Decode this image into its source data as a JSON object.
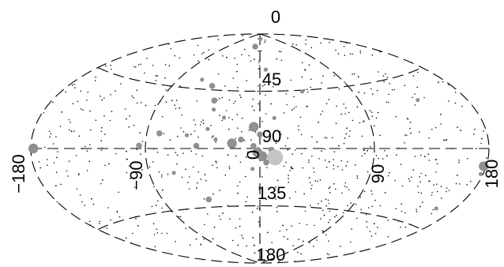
{
  "chart_data": {
    "type": "scatter",
    "projection": "aitoff",
    "title": "",
    "xlabel": "",
    "ylabel": "",
    "lon_range": [
      -180,
      180
    ],
    "colatitude_range": [
      0,
      180
    ],
    "grid": true,
    "lon_tick_labels": [
      {
        "lon": -180,
        "text": "−180"
      },
      {
        "lon": -90,
        "text": "−90"
      },
      {
        "lon": 0,
        "text": "0"
      },
      {
        "lon": 90,
        "text": "90"
      },
      {
        "lon": 180,
        "text": "180"
      }
    ],
    "lat_tick_labels": [
      {
        "colat": 0,
        "text": "0"
      },
      {
        "colat": 45,
        "text": "45"
      },
      {
        "colat": 90,
        "text": "90"
      },
      {
        "colat": 135,
        "text": "135"
      },
      {
        "colat": 180,
        "text": "180"
      }
    ],
    "colors": {
      "bright": "#909090",
      "faint": "#111111",
      "bright_light": "#c4c4c4"
    },
    "bright_sources": [
      {
        "lon": 5,
        "colat": 4,
        "mag": 1
      },
      {
        "lon": -15,
        "colat": 10,
        "mag": 2
      },
      {
        "lon": -65,
        "colat": 38,
        "mag": 1
      },
      {
        "lon": -50,
        "colat": 42,
        "mag": 2
      },
      {
        "lon": -42,
        "colat": 53,
        "mag": 2
      },
      {
        "lon": -40,
        "colat": 60,
        "mag": 1
      },
      {
        "lon": -30,
        "colat": 66,
        "mag": 1
      },
      {
        "lon": -5,
        "colat": 73,
        "mag": 3
      },
      {
        "lon": 0,
        "colat": 79,
        "mag": 2
      },
      {
        "lon": -15,
        "colat": 83,
        "mag": 2
      },
      {
        "lon": -42,
        "colat": 75,
        "mag": 1
      },
      {
        "lon": -80,
        "colat": 79,
        "mag": 2
      },
      {
        "lon": -58,
        "colat": 80,
        "mag": 1
      },
      {
        "lon": -35,
        "colat": 83,
        "mag": 1
      },
      {
        "lon": -22,
        "colat": 86,
        "mag": 3
      },
      {
        "lon": -50,
        "colat": 88,
        "mag": 2
      },
      {
        "lon": -95,
        "colat": 88,
        "mag": 2
      },
      {
        "lon": -5,
        "colat": 88,
        "mag": 2
      },
      {
        "lon": -2,
        "colat": 93,
        "mag": 3
      },
      {
        "lon": 9,
        "colat": 91,
        "mag": 2
      },
      {
        "lon": 12,
        "colat": 97,
        "mag": 4
      },
      {
        "lon": 2,
        "colat": 96,
        "mag": 3
      },
      {
        "lon": 5,
        "colat": 101,
        "mag": 2
      },
      {
        "lon": -6,
        "colat": 106,
        "mag": 1
      },
      {
        "lon": -70,
        "colat": 108,
        "mag": 1
      },
      {
        "lon": -48,
        "colat": 129,
        "mag": 2
      },
      {
        "lon": -178,
        "colat": 90,
        "mag": 3
      },
      {
        "lon": 178,
        "colat": 99,
        "mag": 3
      },
      {
        "lon": 178,
        "colat": 103,
        "mag": 1
      },
      {
        "lon": 165,
        "colat": 124,
        "mag": 1
      },
      {
        "lon": 140,
        "colat": 60,
        "mag": 1
      },
      {
        "lon": 8,
        "colat": 28,
        "mag": 1
      },
      {
        "lon": 42,
        "colat": 46,
        "mag": 1
      },
      {
        "lon": 12,
        "colat": 66,
        "mag": 1
      }
    ],
    "faint_sources": [
      [
        -10,
        20
      ],
      [
        20,
        40
      ],
      [
        -80,
        55
      ],
      [
        -110,
        70
      ],
      [
        -120,
        100
      ],
      [
        -130,
        110
      ],
      [
        -100,
        130
      ],
      [
        -60,
        150
      ],
      [
        -30,
        160
      ],
      [
        30,
        150
      ],
      [
        60,
        120
      ],
      [
        80,
        110
      ],
      [
        100,
        95
      ],
      [
        120,
        80
      ],
      [
        150,
        70
      ],
      [
        110,
        40
      ],
      [
        60,
        30
      ],
      [
        30,
        20
      ],
      [
        -30,
        30
      ],
      [
        -60,
        20
      ],
      [
        -140,
        60
      ],
      [
        -150,
        80
      ],
      [
        -160,
        95
      ],
      [
        -170,
        110
      ],
      [
        140,
        110
      ],
      [
        160,
        80
      ],
      [
        130,
        140
      ],
      [
        -140,
        140
      ],
      [
        20,
        170
      ],
      [
        -20,
        172
      ],
      [
        -25,
        95
      ],
      [
        -35,
        100
      ],
      [
        -12,
        112
      ],
      [
        15,
        115
      ],
      [
        25,
        105
      ],
      [
        35,
        90
      ],
      [
        45,
        85
      ],
      [
        -45,
        110
      ],
      [
        -55,
        120
      ],
      [
        -20,
        125
      ],
      [
        -8,
        140
      ],
      [
        6,
        130
      ],
      [
        40,
        125
      ],
      [
        55,
        100
      ],
      [
        70,
        75
      ],
      [
        85,
        60
      ],
      [
        95,
        50
      ],
      [
        -70,
        60
      ],
      [
        -90,
        45
      ],
      [
        -115,
        40
      ],
      [
        -125,
        85
      ],
      [
        -95,
        105
      ],
      [
        -85,
        120
      ],
      [
        -75,
        135
      ],
      [
        -40,
        140
      ],
      [
        70,
        140
      ],
      [
        90,
        135
      ],
      [
        110,
        120
      ],
      [
        150,
        125
      ],
      [
        160,
        105
      ],
      [
        -150,
        120
      ],
      [
        -165,
        70
      ],
      [
        -5,
        60
      ],
      [
        10,
        55
      ],
      [
        -2,
        45
      ],
      [
        5,
        40
      ],
      [
        -18,
        50
      ],
      [
        28,
        60
      ],
      [
        48,
        70
      ],
      [
        -25,
        75
      ],
      [
        22,
        82
      ],
      [
        62,
        88
      ],
      [
        -65,
        95
      ],
      [
        -105,
        92
      ],
      [
        -135,
        98
      ],
      [
        130,
        95
      ],
      [
        145,
        85
      ],
      [
        170,
        90
      ],
      [
        -175,
        100
      ],
      [
        175,
        85
      ],
      [
        100,
        65
      ],
      [
        -100,
        60
      ],
      [
        0,
        150
      ],
      [
        -12,
        160
      ],
      [
        12,
        156
      ],
      [
        50,
        160
      ],
      [
        -50,
        165
      ],
      [
        80,
        160
      ],
      [
        -80,
        158
      ]
    ]
  }
}
